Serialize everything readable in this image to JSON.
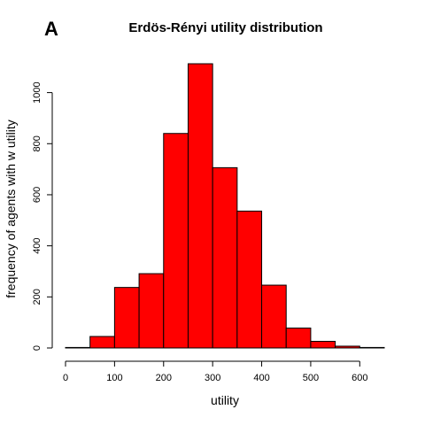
{
  "panel_label": "A",
  "chart_data": {
    "type": "bar",
    "title": "Erdös-Rényi utility distribution",
    "xlabel": "utility",
    "ylabel": "frequency of agents with w utility",
    "bin_edges": [
      0,
      50,
      100,
      150,
      200,
      250,
      300,
      350,
      400,
      450,
      500,
      550,
      600,
      650
    ],
    "values": [
      2,
      45,
      237,
      291,
      840,
      1113,
      706,
      536,
      246,
      78,
      26,
      7,
      2
    ],
    "xlim": [
      0,
      650
    ],
    "ylim": [
      0,
      1113
    ],
    "xticks": [
      0,
      100,
      200,
      300,
      400,
      500,
      600
    ],
    "yticks": [
      0,
      200,
      400,
      600,
      800,
      1000
    ],
    "bar_color": "#ff0000",
    "grid": false,
    "legend": "none"
  }
}
